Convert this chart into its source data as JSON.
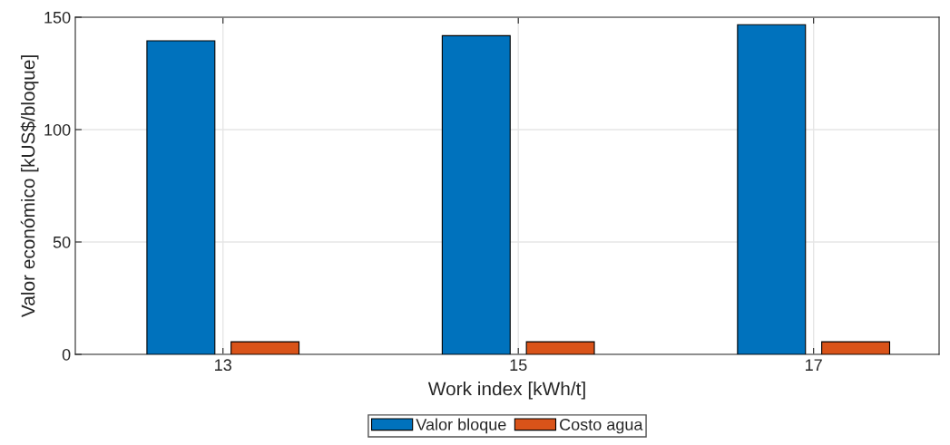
{
  "chart_data": {
    "type": "bar",
    "xlabel": "Work index [kWh/t]",
    "ylabel": "Valor económico [kUS$/bloque]",
    "x": [
      13,
      15,
      17
    ],
    "xlim": [
      12,
      17.85
    ],
    "xticks": [
      13,
      15,
      17
    ],
    "ylim": [
      0,
      150
    ],
    "yticks": [
      0,
      50,
      100,
      150
    ],
    "series": [
      {
        "name": "Valor bloque",
        "color": "#0072bd",
        "values": [
          139.5,
          141.8,
          146.7
        ]
      },
      {
        "name": "Costo agua",
        "color": "#d95319",
        "values": [
          5.6,
          5.6,
          5.6
        ]
      }
    ],
    "grid": true,
    "legend": "bottom"
  }
}
